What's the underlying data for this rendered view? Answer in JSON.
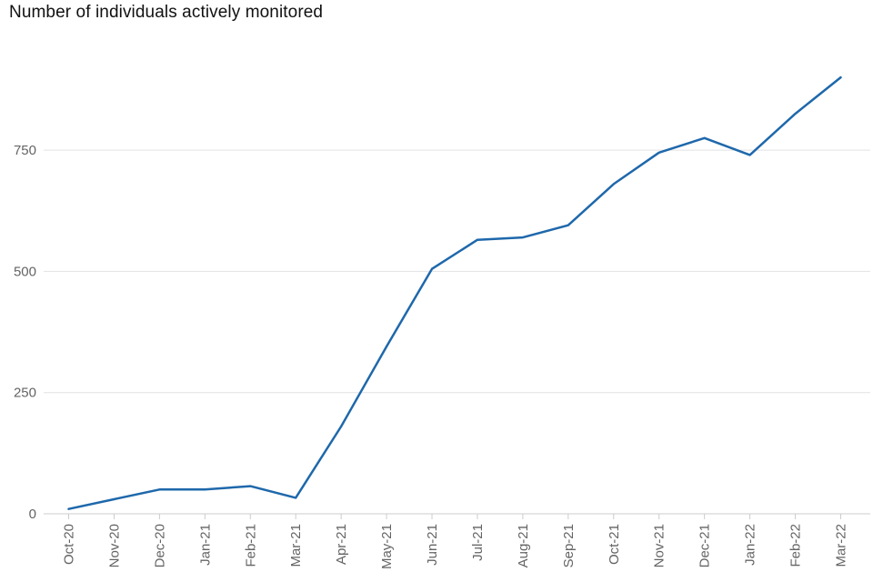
{
  "chart_data": {
    "type": "line",
    "title": "Number of individuals actively monitored",
    "categories": [
      "Oct-20",
      "Nov-20",
      "Dec-20",
      "Jan-21",
      "Feb-21",
      "Mar-21",
      "Apr-21",
      "May-21",
      "Jun-21",
      "Jul-21",
      "Aug-21",
      "Sep-21",
      "Oct-21",
      "Nov-21",
      "Dec-21",
      "Jan-22",
      "Feb-22",
      "Mar-22"
    ],
    "values": [
      10,
      30,
      50,
      50,
      57,
      33,
      180,
      345,
      505,
      565,
      570,
      595,
      680,
      745,
      775,
      740,
      825,
      900
    ],
    "xlabel": "",
    "ylabel": "",
    "y_ticks": [
      0,
      250,
      500,
      750
    ],
    "ylim": [
      0,
      950
    ],
    "grid": "horizontal",
    "legend": "none",
    "x_tick_rotation": -90,
    "colors": {
      "line": "#1e68ab",
      "grid": "#e2e2e2",
      "axis": "#cccccc",
      "tick_label": "#646464",
      "title": "#111111",
      "background": "#ffffff"
    }
  }
}
